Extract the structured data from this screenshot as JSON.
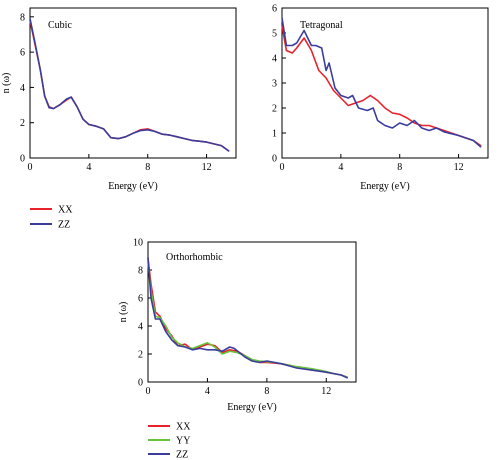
{
  "colors": {
    "XX": "#e8222b",
    "YY": "#66c33b",
    "ZZ": "#3a3d9b"
  },
  "chart_data": [
    {
      "type": "line",
      "title": "Cubic",
      "xlabel": "Energy (eV)",
      "ylabel": "n (ω)",
      "xlim": [
        0,
        14
      ],
      "ylim": [
        0,
        8.5
      ],
      "xticks": [
        0,
        4,
        8,
        12
      ],
      "yticks": [
        0,
        2,
        4,
        6,
        8
      ],
      "legend": [
        "XX",
        "ZZ"
      ],
      "series": [
        {
          "name": "XX",
          "points": [
            [
              0,
              7.8
            ],
            [
              0.3,
              6.6
            ],
            [
              0.7,
              5.0
            ],
            [
              1,
              3.5
            ],
            [
              1.3,
              2.9
            ],
            [
              1.6,
              2.8
            ],
            [
              2.0,
              3.0
            ],
            [
              2.5,
              3.3
            ],
            [
              2.8,
              3.45
            ],
            [
              3.2,
              2.9
            ],
            [
              3.6,
              2.2
            ],
            [
              4,
              1.9
            ],
            [
              4.5,
              1.8
            ],
            [
              5,
              1.65
            ],
            [
              5.5,
              1.15
            ],
            [
              6,
              1.1
            ],
            [
              6.5,
              1.2
            ],
            [
              7,
              1.4
            ],
            [
              7.5,
              1.6
            ],
            [
              8,
              1.65
            ],
            [
              8.5,
              1.5
            ],
            [
              9,
              1.35
            ],
            [
              9.5,
              1.3
            ],
            [
              10,
              1.2
            ],
            [
              10.5,
              1.1
            ],
            [
              11,
              1.0
            ],
            [
              11.5,
              0.95
            ],
            [
              12,
              0.9
            ],
            [
              12.5,
              0.8
            ],
            [
              13,
              0.7
            ],
            [
              13.5,
              0.4
            ]
          ]
        },
        {
          "name": "ZZ",
          "points": [
            [
              0,
              7.9
            ],
            [
              0.3,
              6.7
            ],
            [
              0.7,
              5.0
            ],
            [
              1,
              3.5
            ],
            [
              1.3,
              2.85
            ],
            [
              1.6,
              2.8
            ],
            [
              2.0,
              3.0
            ],
            [
              2.5,
              3.35
            ],
            [
              2.8,
              3.45
            ],
            [
              3.2,
              2.9
            ],
            [
              3.6,
              2.2
            ],
            [
              4,
              1.9
            ],
            [
              4.5,
              1.8
            ],
            [
              5,
              1.65
            ],
            [
              5.5,
              1.15
            ],
            [
              6,
              1.1
            ],
            [
              6.5,
              1.2
            ],
            [
              7,
              1.4
            ],
            [
              7.5,
              1.55
            ],
            [
              8,
              1.6
            ],
            [
              8.5,
              1.5
            ],
            [
              9,
              1.35
            ],
            [
              9.5,
              1.3
            ],
            [
              10,
              1.2
            ],
            [
              10.5,
              1.1
            ],
            [
              11,
              1.0
            ],
            [
              11.5,
              0.95
            ],
            [
              12,
              0.9
            ],
            [
              12.5,
              0.8
            ],
            [
              13,
              0.7
            ],
            [
              13.5,
              0.4
            ]
          ]
        }
      ]
    },
    {
      "type": "line",
      "title": "Tetragonal",
      "xlabel": "Energy (eV)",
      "ylabel": "",
      "xlim": [
        0,
        14
      ],
      "ylim": [
        0,
        6
      ],
      "xticks": [
        0,
        4,
        8,
        12
      ],
      "yticks": [
        0,
        1,
        2,
        3,
        4,
        5,
        6
      ],
      "legend": [],
      "series": [
        {
          "name": "XX",
          "points": [
            [
              0,
              5.3
            ],
            [
              0.3,
              4.3
            ],
            [
              0.7,
              4.2
            ],
            [
              1,
              4.4
            ],
            [
              1.5,
              4.8
            ],
            [
              2,
              4.3
            ],
            [
              2.5,
              3.5
            ],
            [
              3,
              3.2
            ],
            [
              3.5,
              2.7
            ],
            [
              4,
              2.4
            ],
            [
              4.5,
              2.1
            ],
            [
              5,
              2.2
            ],
            [
              5.5,
              2.3
            ],
            [
              6,
              2.5
            ],
            [
              6.5,
              2.3
            ],
            [
              7,
              2.0
            ],
            [
              7.5,
              1.8
            ],
            [
              8,
              1.75
            ],
            [
              8.5,
              1.6
            ],
            [
              9,
              1.4
            ],
            [
              9.5,
              1.3
            ],
            [
              10,
              1.3
            ],
            [
              10.5,
              1.2
            ],
            [
              11,
              1.1
            ],
            [
              11.5,
              1.0
            ],
            [
              12,
              0.9
            ],
            [
              12.5,
              0.8
            ],
            [
              13,
              0.7
            ],
            [
              13.5,
              0.5
            ]
          ]
        },
        {
          "name": "ZZ",
          "points": [
            [
              0,
              5.6
            ],
            [
              0.3,
              4.5
            ],
            [
              0.7,
              4.5
            ],
            [
              1,
              4.6
            ],
            [
              1.5,
              5.1
            ],
            [
              2,
              4.5
            ],
            [
              2.3,
              4.5
            ],
            [
              2.7,
              4.4
            ],
            [
              3,
              3.5
            ],
            [
              3.2,
              3.8
            ],
            [
              3.6,
              2.8
            ],
            [
              4,
              2.5
            ],
            [
              4.5,
              2.4
            ],
            [
              4.8,
              2.5
            ],
            [
              5.2,
              2.0
            ],
            [
              5.8,
              1.9
            ],
            [
              6.2,
              2.0
            ],
            [
              6.5,
              1.5
            ],
            [
              7,
              1.3
            ],
            [
              7.5,
              1.2
            ],
            [
              8,
              1.4
            ],
            [
              8.5,
              1.3
            ],
            [
              9,
              1.5
            ],
            [
              9.5,
              1.2
            ],
            [
              10,
              1.1
            ],
            [
              10.5,
              1.2
            ],
            [
              11,
              1.05
            ],
            [
              12,
              0.9
            ],
            [
              12.5,
              0.8
            ],
            [
              13,
              0.7
            ],
            [
              13.5,
              0.45
            ]
          ]
        }
      ]
    },
    {
      "type": "line",
      "title": "Orthorhombic",
      "xlabel": "Energy (eV)",
      "ylabel": "n (ω)",
      "xlim": [
        0,
        14
      ],
      "ylim": [
        0,
        10
      ],
      "xticks": [
        0,
        4,
        8,
        12
      ],
      "yticks": [
        0,
        2,
        4,
        6,
        8,
        10
      ],
      "legend": [
        "XX",
        "YY",
        "ZZ"
      ],
      "series": [
        {
          "name": "XX",
          "points": [
            [
              0,
              8.8
            ],
            [
              0.2,
              7.0
            ],
            [
              0.5,
              5.0
            ],
            [
              0.8,
              4.7
            ],
            [
              1.2,
              3.8
            ],
            [
              1.6,
              3.3
            ],
            [
              2,
              2.6
            ],
            [
              2.5,
              2.7
            ],
            [
              3,
              2.3
            ],
            [
              3.5,
              2.5
            ],
            [
              4,
              2.7
            ],
            [
              4.5,
              2.6
            ],
            [
              5,
              2.1
            ],
            [
              5.5,
              2.3
            ],
            [
              6,
              2.2
            ],
            [
              6.5,
              1.9
            ],
            [
              7,
              1.6
            ],
            [
              7.5,
              1.4
            ],
            [
              8,
              1.4
            ],
            [
              8.5,
              1.35
            ],
            [
              9,
              1.3
            ],
            [
              9.5,
              1.2
            ],
            [
              10,
              1.05
            ],
            [
              11,
              0.9
            ],
            [
              12,
              0.7
            ],
            [
              12.5,
              0.6
            ],
            [
              13,
              0.5
            ],
            [
              13.4,
              0.35
            ]
          ]
        },
        {
          "name": "YY",
          "points": [
            [
              0,
              8.6
            ],
            [
              0.2,
              6.5
            ],
            [
              0.5,
              4.7
            ],
            [
              0.8,
              4.6
            ],
            [
              1.2,
              4.0
            ],
            [
              1.6,
              3.2
            ],
            [
              2,
              2.8
            ],
            [
              2.5,
              2.5
            ],
            [
              3,
              2.4
            ],
            [
              3.5,
              2.6
            ],
            [
              4,
              2.8
            ],
            [
              4.5,
              2.5
            ],
            [
              5,
              2.0
            ],
            [
              5.5,
              2.2
            ],
            [
              6,
              2.1
            ],
            [
              6.5,
              1.9
            ],
            [
              7,
              1.6
            ],
            [
              7.5,
              1.5
            ],
            [
              8,
              1.45
            ],
            [
              8.5,
              1.4
            ],
            [
              9,
              1.3
            ],
            [
              9.5,
              1.2
            ],
            [
              10,
              1.1
            ],
            [
              11,
              0.95
            ],
            [
              12,
              0.75
            ],
            [
              12.5,
              0.6
            ],
            [
              13,
              0.5
            ],
            [
              13.4,
              0.35
            ]
          ]
        },
        {
          "name": "ZZ",
          "points": [
            [
              0,
              8.9
            ],
            [
              0.2,
              6.0
            ],
            [
              0.5,
              4.5
            ],
            [
              0.8,
              4.5
            ],
            [
              1.2,
              3.6
            ],
            [
              1.6,
              3.0
            ],
            [
              2,
              2.6
            ],
            [
              2.5,
              2.5
            ],
            [
              3,
              2.3
            ],
            [
              3.5,
              2.4
            ],
            [
              4,
              2.3
            ],
            [
              4.5,
              2.3
            ],
            [
              5,
              2.2
            ],
            [
              5.5,
              2.5
            ],
            [
              5.8,
              2.4
            ],
            [
              6.5,
              1.8
            ],
            [
              7,
              1.5
            ],
            [
              7.5,
              1.4
            ],
            [
              8,
              1.5
            ],
            [
              8.5,
              1.4
            ],
            [
              9,
              1.3
            ],
            [
              9.5,
              1.15
            ],
            [
              10,
              1.0
            ],
            [
              11,
              0.85
            ],
            [
              12,
              0.7
            ],
            [
              12.5,
              0.6
            ],
            [
              13,
              0.5
            ],
            [
              13.4,
              0.3
            ]
          ]
        }
      ]
    }
  ]
}
